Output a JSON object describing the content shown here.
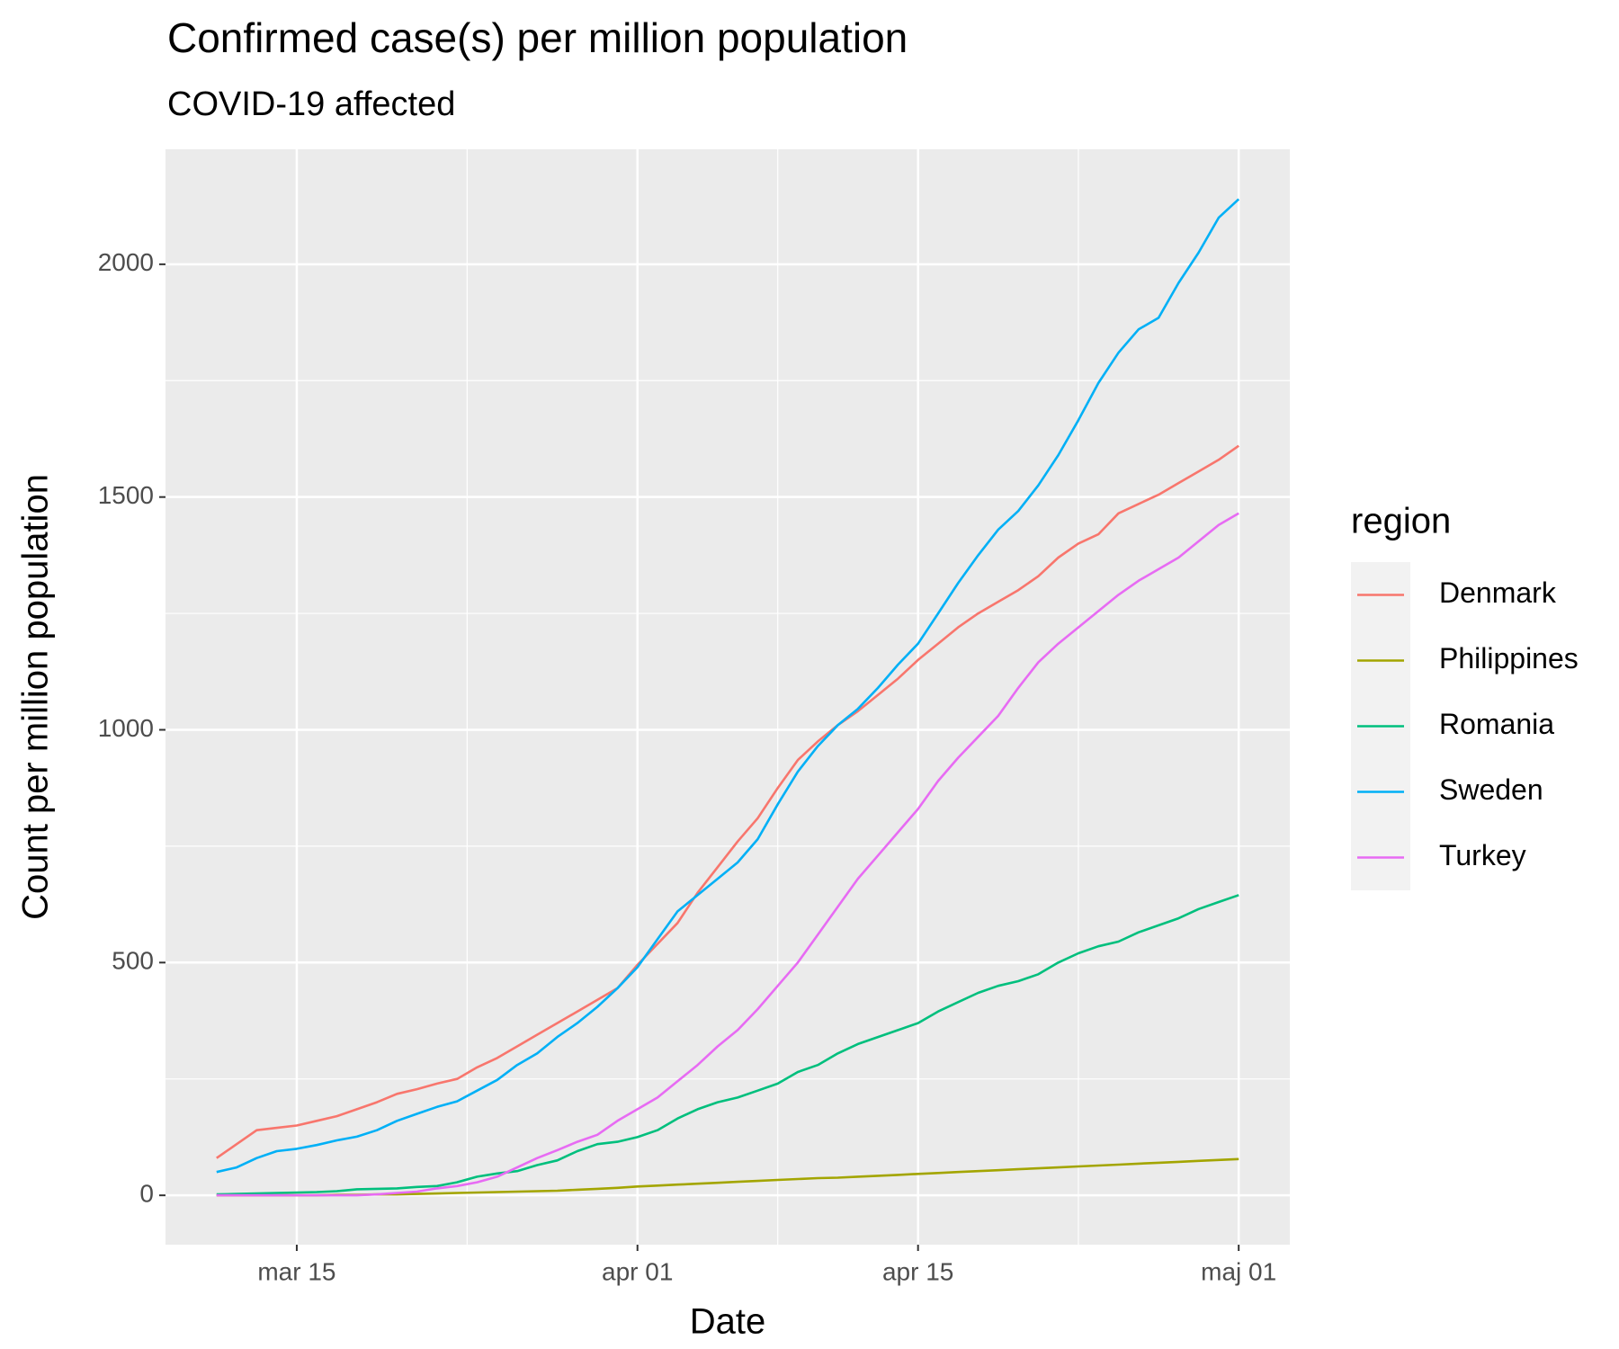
{
  "chart_data": {
    "type": "line",
    "title": "Confirmed case(s) per million population",
    "subtitle": "COVID-19 affected",
    "x_label": "Date",
    "y_label": "Count per million population",
    "legend_title": "region",
    "legend_position": "right",
    "grid": true,
    "x": [
      "mar 11",
      "mar 12",
      "mar 13",
      "mar 14",
      "mar 15",
      "mar 16",
      "mar 17",
      "mar 18",
      "mar 19",
      "mar 20",
      "mar 21",
      "mar 22",
      "mar 23",
      "mar 24",
      "mar 25",
      "mar 26",
      "mar 27",
      "mar 28",
      "mar 29",
      "mar 30",
      "mar 31",
      "apr 01",
      "apr 02",
      "apr 03",
      "apr 04",
      "apr 05",
      "apr 06",
      "apr 07",
      "apr 08",
      "apr 09",
      "apr 10",
      "apr 11",
      "apr 12",
      "apr 13",
      "apr 14",
      "apr 15",
      "apr 16",
      "apr 17",
      "apr 18",
      "apr 19",
      "apr 20",
      "apr 21",
      "apr 22",
      "apr 23",
      "apr 24",
      "apr 25",
      "apr 26",
      "apr 27",
      "apr 28",
      "apr 29",
      "apr 30",
      "maj 01"
    ],
    "xticks": [
      "mar 15",
      "apr 01",
      "apr 15",
      "maj 01"
    ],
    "ylim": [
      -106,
      2247
    ],
    "yticks": [
      0,
      500,
      1000,
      1500,
      2000
    ],
    "series": [
      {
        "name": "Denmark",
        "color": "#F8766D",
        "values": [
          80,
          110,
          140,
          145,
          150,
          160,
          170,
          185,
          200,
          218,
          228,
          240,
          250,
          275,
          295,
          320,
          345,
          370,
          395,
          420,
          445,
          495,
          540,
          585,
          650,
          705,
          760,
          810,
          875,
          935,
          975,
          1010,
          1040,
          1075,
          1110,
          1150,
          1185,
          1220,
          1250,
          1275,
          1300,
          1330,
          1370,
          1400,
          1420,
          1465,
          1485,
          1505,
          1530,
          1555,
          1580,
          1610
        ]
      },
      {
        "name": "Philippines",
        "color": "#A3A500",
        "values": [
          0,
          0,
          0,
          0,
          0,
          0,
          1,
          1,
          2,
          2,
          3,
          4,
          5,
          6,
          7,
          8,
          9,
          10,
          12,
          14,
          16,
          19,
          21,
          23,
          25,
          27,
          29,
          31,
          33,
          35,
          37,
          38,
          40,
          42,
          44,
          46,
          48,
          50,
          52,
          54,
          56,
          58,
          60,
          62,
          64,
          66,
          68,
          70,
          72,
          74,
          76,
          78
        ]
      },
      {
        "name": "Romania",
        "color": "#00BF7D",
        "values": [
          2,
          3,
          4,
          5,
          6,
          7,
          9,
          13,
          14,
          15,
          18,
          20,
          28,
          40,
          47,
          52,
          65,
          75,
          95,
          110,
          115,
          125,
          140,
          165,
          185,
          200,
          210,
          225,
          240,
          265,
          280,
          305,
          325,
          340,
          355,
          370,
          395,
          415,
          435,
          450,
          460,
          475,
          500,
          520,
          535,
          545,
          565,
          580,
          595,
          615,
          630,
          645
        ]
      },
      {
        "name": "Sweden",
        "color": "#00B0F6",
        "values": [
          50,
          60,
          80,
          95,
          100,
          108,
          118,
          126,
          140,
          160,
          175,
          190,
          202,
          225,
          248,
          280,
          305,
          340,
          370,
          405,
          445,
          490,
          550,
          610,
          645,
          680,
          715,
          765,
          840,
          910,
          965,
          1010,
          1045,
          1090,
          1140,
          1185,
          1250,
          1315,
          1375,
          1430,
          1470,
          1525,
          1590,
          1665,
          1745,
          1810,
          1860,
          1885,
          1960,
          2025,
          2100,
          2140
        ]
      },
      {
        "name": "Turkey",
        "color": "#E76BF3",
        "values": [
          0,
          0,
          0,
          0,
          0,
          0,
          0,
          0,
          2,
          5,
          8,
          15,
          20,
          28,
          40,
          60,
          80,
          97,
          115,
          130,
          160,
          185,
          210,
          245,
          280,
          320,
          355,
          400,
          450,
          500,
          560,
          620,
          680,
          730,
          780,
          830,
          890,
          940,
          985,
          1030,
          1090,
          1145,
          1185,
          1220,
          1255,
          1290,
          1320,
          1345,
          1370,
          1405,
          1440,
          1465
        ]
      }
    ]
  }
}
